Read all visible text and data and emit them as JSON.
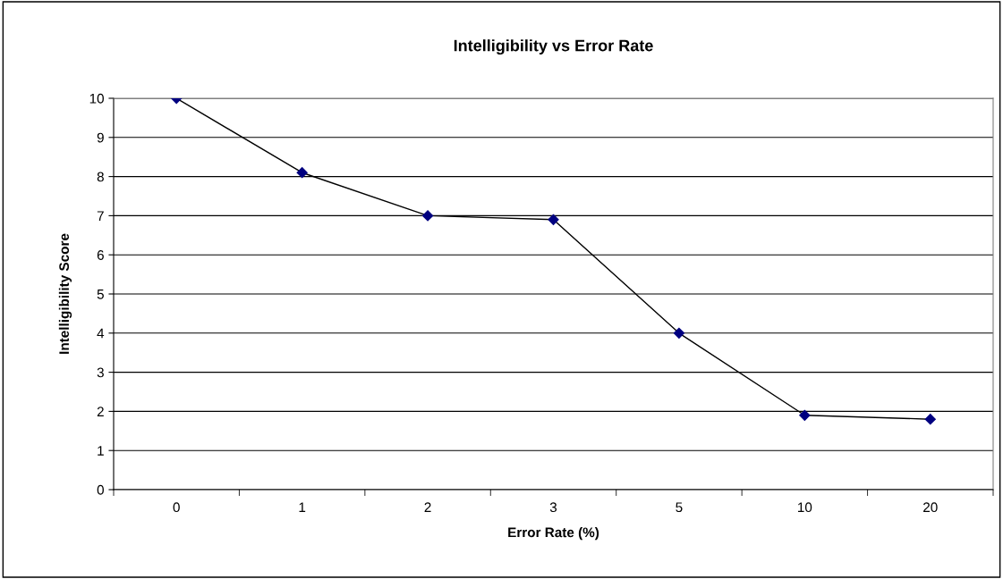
{
  "chart_data": {
    "type": "line",
    "title": "Intelligibility vs Error Rate",
    "xlabel": "Error Rate (%)",
    "ylabel": "Intelligibility Score",
    "categories": [
      "0",
      "1",
      "2",
      "3",
      "5",
      "10",
      "20"
    ],
    "series": [
      {
        "color": "#000080",
        "values": [
          10,
          8.1,
          7.0,
          6.9,
          4.0,
          1.9,
          1.8
        ]
      }
    ],
    "ylim": [
      0,
      10
    ],
    "yticks": [
      0,
      1,
      2,
      3,
      4,
      5,
      6,
      7,
      8,
      9,
      10
    ],
    "grid": "y",
    "marker": "diamond",
    "line_style": "solid"
  }
}
